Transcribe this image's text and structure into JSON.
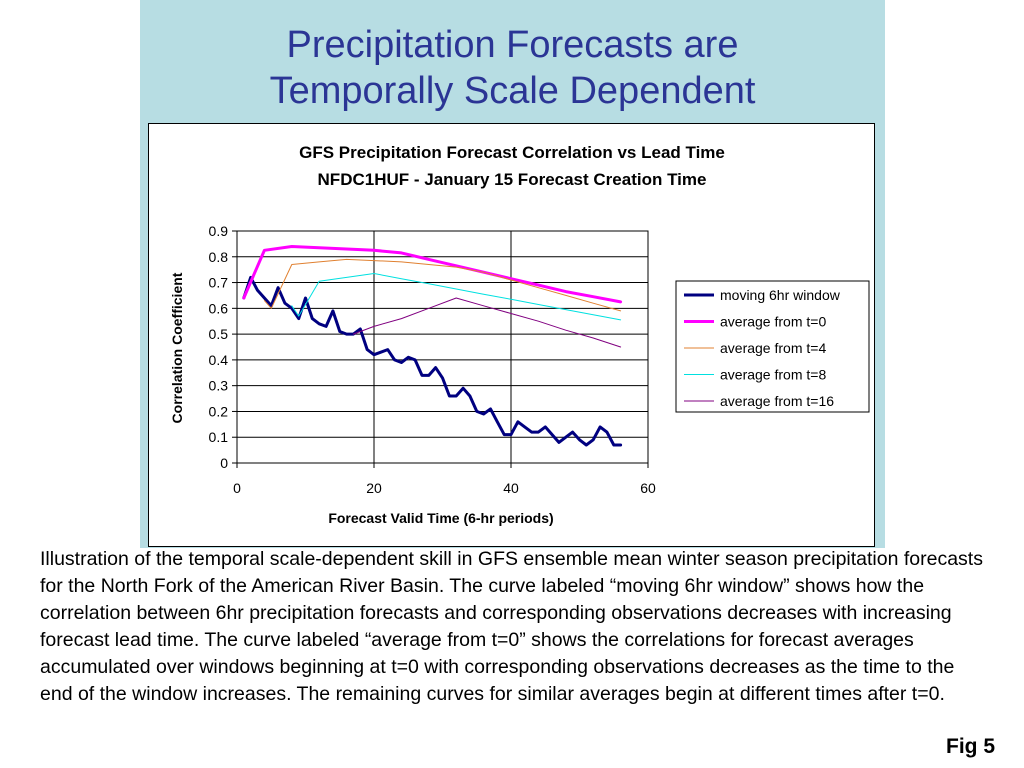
{
  "slide": {
    "title_line1": "Precipitation Forecasts are",
    "title_line2": "Temporally Scale Dependent",
    "caption": "Illustration of the temporal scale-dependent skill in GFS ensemble mean winter season precipitation forecasts for the North Fork of the American River Basin. The curve labeled “moving 6hr window” shows how the correlation between 6hr precipitation forecasts and corresponding observations decreases with increasing forecast lead time. The curve labeled “average from t=0” shows the correlations for forecast averages accumulated over windows beginning at t=0 with corresponding observations decreases as the time to the end of the window increases. The remaining curves for similar averages begin at different times after t=0.",
    "fig_label": "Fig 5",
    "colors": {
      "header_bg": "#b7dde3",
      "title": "#2b3595"
    }
  },
  "chart_data": {
    "type": "line",
    "title_line1": "GFS Precipitation Forecast Correlation vs Lead Time",
    "title_line2": "NFDC1HUF - January 15 Forecast Creation Time",
    "xlabel": "Forecast Valid Time (6-hr periods)",
    "ylabel": "Correlation Coefficient",
    "xlim": [
      0,
      60
    ],
    "ylim": [
      0,
      0.9
    ],
    "xticks": [
      "0",
      "20",
      "40",
      "60"
    ],
    "yticks": [
      "0",
      "0.1",
      "0.2",
      "0.3",
      "0.4",
      "0.5",
      "0.6",
      "0.7",
      "0.8",
      "0.9"
    ],
    "grid": "horizontal and vertical at major ticks",
    "legend_position": "right",
    "series": [
      {
        "name": "moving 6hr window",
        "color": "#000080",
        "width": 3,
        "x": [
          1,
          2,
          3,
          4,
          5,
          6,
          7,
          8,
          9,
          10,
          11,
          12,
          13,
          14,
          15,
          16,
          17,
          18,
          19,
          20,
          21,
          22,
          23,
          24,
          25,
          26,
          27,
          28,
          29,
          30,
          31,
          32,
          33,
          34,
          35,
          36,
          37,
          38,
          39,
          40,
          41,
          42,
          43,
          44,
          45,
          46,
          47,
          48,
          49,
          50,
          51,
          52,
          53,
          54,
          55,
          56
        ],
        "y": [
          0.64,
          0.72,
          0.67,
          0.64,
          0.61,
          0.68,
          0.62,
          0.6,
          0.56,
          0.64,
          0.56,
          0.54,
          0.53,
          0.59,
          0.51,
          0.5,
          0.5,
          0.52,
          0.44,
          0.42,
          0.43,
          0.44,
          0.4,
          0.39,
          0.41,
          0.4,
          0.34,
          0.34,
          0.37,
          0.33,
          0.26,
          0.26,
          0.29,
          0.26,
          0.2,
          0.19,
          0.21,
          0.16,
          0.11,
          0.11,
          0.16,
          0.14,
          0.12,
          0.12,
          0.14,
          0.11,
          0.08,
          0.1,
          0.12,
          0.09,
          0.07,
          0.09,
          0.14,
          0.12,
          0.07,
          0.07
        ]
      },
      {
        "name": "average from t=0",
        "color": "#ff00ff",
        "width": 3,
        "x": [
          1,
          4,
          8,
          12,
          16,
          20,
          24,
          28,
          32,
          36,
          40,
          44,
          48,
          52,
          56
        ],
        "y": [
          0.64,
          0.825,
          0.84,
          0.835,
          0.83,
          0.825,
          0.815,
          0.79,
          0.765,
          0.74,
          0.715,
          0.69,
          0.665,
          0.645,
          0.625
        ]
      },
      {
        "name": "average from t=4",
        "color": "#e08030",
        "width": 1,
        "x": [
          4,
          5,
          8,
          12,
          16,
          20,
          24,
          28,
          32,
          36,
          40,
          44,
          48,
          52,
          56
        ],
        "y": [
          0.63,
          0.6,
          0.77,
          0.78,
          0.79,
          0.785,
          0.78,
          0.77,
          0.76,
          0.74,
          0.71,
          0.68,
          0.65,
          0.62,
          0.59
        ]
      },
      {
        "name": "average from t=8",
        "color": "#00e0e0",
        "width": 1,
        "x": [
          8,
          9,
          12,
          16,
          20,
          24,
          28,
          32,
          36,
          40,
          44,
          48,
          52,
          56
        ],
        "y": [
          0.61,
          0.57,
          0.705,
          0.72,
          0.735,
          0.715,
          0.695,
          0.675,
          0.655,
          0.635,
          0.615,
          0.595,
          0.575,
          0.555
        ]
      },
      {
        "name": "average from t=16",
        "color": "#800080",
        "width": 1,
        "x": [
          17,
          20,
          24,
          28,
          32,
          36,
          40,
          44,
          48,
          52,
          56
        ],
        "y": [
          0.5,
          0.53,
          0.56,
          0.6,
          0.64,
          0.61,
          0.58,
          0.55,
          0.515,
          0.485,
          0.45
        ]
      }
    ]
  }
}
